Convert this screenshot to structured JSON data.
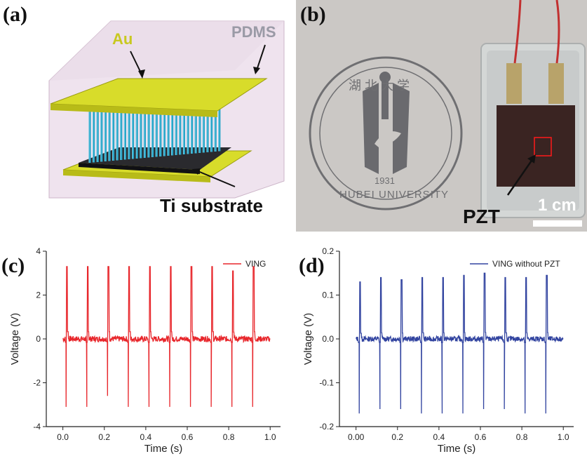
{
  "panel_a": {
    "label": "(a)",
    "au_label": "Au",
    "pdms_label": "PDMS",
    "substrate_label": "Ti substrate"
  },
  "panel_b": {
    "label": "(b)",
    "pzt_label": "PZT",
    "scale_label": "1 cm",
    "seal_year": "1931",
    "seal_text": "HUBEI UNIVERSITY",
    "seal_top_text": "湖 北 大 学"
  },
  "colors": {
    "au": "#d8dc2a",
    "nanowire": "#2aa6c8",
    "series_c": "#e8262b",
    "series_d": "#3244a0",
    "pdms": "#e6d6e4"
  },
  "chart_data": [
    {
      "panel_label": "(c)",
      "type": "line",
      "xlabel": "Time (s)",
      "ylabel": "Voltage (V)",
      "xlim": [
        -0.08,
        1.05
      ],
      "ylim": [
        -4,
        4
      ],
      "xticks": [
        0.0,
        0.2,
        0.4,
        0.6,
        0.8,
        1.0
      ],
      "xtick_labels": [
        "0.0",
        "0.2",
        "0.4",
        "0.6",
        "0.8",
        "1.0"
      ],
      "yticks": [
        -4,
        -2,
        0,
        2,
        4
      ],
      "ytick_labels": [
        "-4",
        "-2",
        "0",
        "2",
        "4"
      ],
      "legend_position": "top-right",
      "series": [
        {
          "name": "VING",
          "color": "#e8262b",
          "baseline": 0,
          "x_end": 1.0,
          "peaks": [
            {
              "t": 0.02,
              "pos": 3.3,
              "neg": -3.1
            },
            {
              "t": 0.12,
              "pos": 3.3,
              "neg": -3.1
            },
            {
              "t": 0.22,
              "pos": 3.3,
              "neg": -2.6
            },
            {
              "t": 0.32,
              "pos": 3.3,
              "neg": -3.1
            },
            {
              "t": 0.42,
              "pos": 3.3,
              "neg": -3.1
            },
            {
              "t": 0.52,
              "pos": 3.3,
              "neg": -3.1
            },
            {
              "t": 0.62,
              "pos": 3.3,
              "neg": -3.1
            },
            {
              "t": 0.72,
              "pos": 3.3,
              "neg": -3.1
            },
            {
              "t": 0.82,
              "pos": 3.1,
              "neg": -3.1
            },
            {
              "t": 0.92,
              "pos": 3.3,
              "neg": -3.1
            }
          ]
        }
      ]
    },
    {
      "panel_label": "(d)",
      "type": "line",
      "xlabel": "Time (s)",
      "ylabel": "Voltage (V)",
      "xlim": [
        -0.08,
        1.05
      ],
      "ylim": [
        -0.2,
        0.2
      ],
      "xticks": [
        0.0,
        0.2,
        0.4,
        0.6,
        0.8,
        1.0
      ],
      "xtick_labels": [
        "0.00",
        "0.2",
        "0.4",
        "0.6",
        "0.8",
        "1.0"
      ],
      "yticks": [
        -0.2,
        -0.1,
        0.0,
        0.1,
        0.2
      ],
      "ytick_labels": [
        "-0.2",
        "-0.1",
        "0.0",
        "0.1",
        "0.2"
      ],
      "legend_position": "top-right",
      "series": [
        {
          "name": "VING without PZT",
          "color": "#3244a0",
          "baseline": 0,
          "x_end": 1.0,
          "peaks": [
            {
              "t": 0.02,
              "pos": 0.13,
              "neg": -0.17
            },
            {
              "t": 0.12,
              "pos": 0.14,
              "neg": -0.16
            },
            {
              "t": 0.22,
              "pos": 0.135,
              "neg": -0.16
            },
            {
              "t": 0.32,
              "pos": 0.14,
              "neg": -0.17
            },
            {
              "t": 0.42,
              "pos": 0.14,
              "neg": -0.17
            },
            {
              "t": 0.52,
              "pos": 0.145,
              "neg": -0.17
            },
            {
              "t": 0.62,
              "pos": 0.15,
              "neg": -0.16
            },
            {
              "t": 0.72,
              "pos": 0.14,
              "neg": -0.16
            },
            {
              "t": 0.82,
              "pos": 0.14,
              "neg": -0.17
            },
            {
              "t": 0.92,
              "pos": 0.145,
              "neg": -0.17
            }
          ]
        }
      ]
    }
  ]
}
